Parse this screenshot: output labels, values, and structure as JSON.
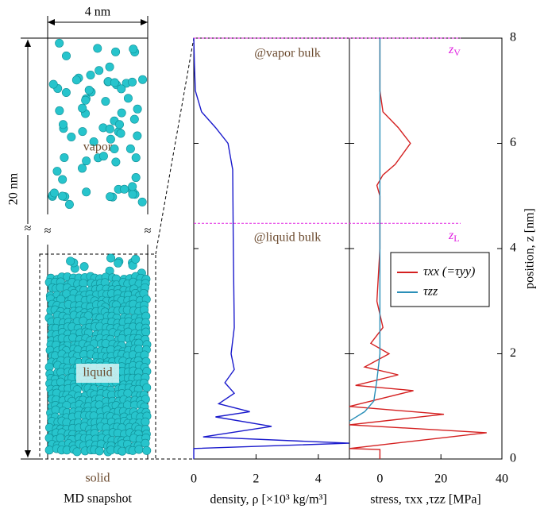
{
  "snapshot": {
    "width_label": "4 nm",
    "height_label": "20 nm",
    "vapor": "vapor",
    "liquid": "liquid",
    "solid": "solid",
    "caption": "MD snapshot"
  },
  "chart_data": [
    {
      "type": "line",
      "xlabel": "density, ρ [×10³ kg/m³]",
      "xlim": [
        0,
        5
      ],
      "xticks": [
        0,
        2,
        4
      ],
      "ylim": [
        0,
        8
      ],
      "annotations": [
        "@vapor bulk",
        "@liquid bulk"
      ],
      "series": [
        {
          "color": "#1a1acc",
          "x": [
            0,
            0,
            5,
            0.3,
            2.5,
            0.7,
            1.8,
            0.8,
            1.3,
            1.0,
            1.3,
            1.2,
            1.3,
            1.27,
            1.25,
            1.1,
            0.7,
            0.25,
            0.05,
            0.02,
            0
          ],
          "y": [
            0,
            0.2,
            0.3,
            0.42,
            0.62,
            0.8,
            0.9,
            1.05,
            1.25,
            1.45,
            1.7,
            2.0,
            2.5,
            4.0,
            5.5,
            6.0,
            6.3,
            6.6,
            7.0,
            7.5,
            8
          ]
        }
      ]
    },
    {
      "type": "line",
      "xlabel": "stress, τxx ,τzz [MPa]",
      "ylabel": "position, z [nm]",
      "xlim": [
        -10,
        40
      ],
      "xticks": [
        0,
        20,
        40
      ],
      "ylim": [
        0,
        8
      ],
      "yticks": [
        0,
        2,
        4,
        6,
        8
      ],
      "levels": [
        {
          "value": 8,
          "label": "z",
          "sub": "V"
        },
        {
          "value": 4.48,
          "label": "z",
          "sub": "L"
        }
      ],
      "level_color": "#e020e0",
      "series": [
        {
          "name": "τxx (=τyy)",
          "color": "#d42020",
          "x": [
            0,
            0,
            -10,
            35,
            -10,
            21,
            -10,
            11,
            -8,
            6,
            -5,
            3,
            -3,
            1,
            -1,
            0,
            0,
            -1,
            1,
            5,
            10,
            6,
            1,
            0,
            0
          ],
          "y": [
            0,
            0.18,
            0.2,
            0.5,
            0.65,
            0.85,
            1.0,
            1.3,
            1.4,
            1.6,
            1.75,
            2.0,
            2.2,
            2.5,
            3.0,
            4.0,
            5.0,
            5.2,
            5.4,
            5.6,
            6.0,
            6.3,
            6.6,
            7.0,
            8
          ]
        },
        {
          "name": "τzz",
          "color": "#2a8fb8",
          "x": [
            -10,
            -5,
            -2,
            -1,
            0,
            0
          ],
          "y": [
            0.72,
            0.9,
            1.1,
            1.5,
            2.0,
            8
          ]
        }
      ]
    }
  ]
}
